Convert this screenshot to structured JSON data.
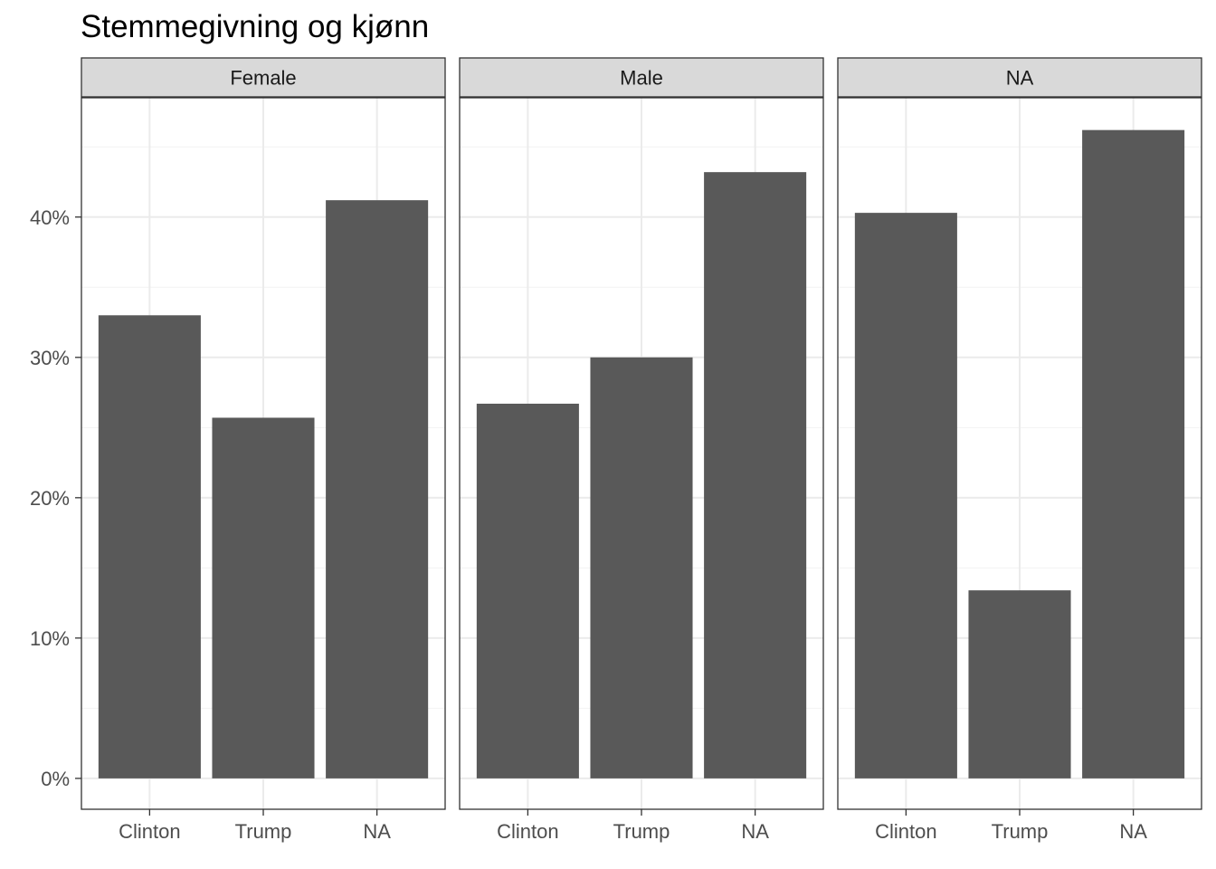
{
  "chart_data": {
    "type": "bar",
    "title": "Stemmegivning og kjønn",
    "xlabel": "",
    "ylabel": "",
    "categories": [
      "Clinton",
      "Trump",
      "NA"
    ],
    "ylim": [
      -2.2,
      48.5
    ],
    "yticks": [
      0,
      10,
      20,
      30,
      40
    ],
    "ytick_labels": [
      "0%",
      "10%",
      "20%",
      "30%",
      "40%"
    ],
    "grid": true,
    "theme": "bw",
    "bar_color": "#595959",
    "panels": [
      {
        "label": "Female",
        "values": [
          33.0,
          25.7,
          41.2
        ]
      },
      {
        "label": "Male",
        "values": [
          26.7,
          30.0,
          43.2
        ]
      },
      {
        "label": "NA",
        "values": [
          40.3,
          13.4,
          46.2
        ]
      }
    ]
  }
}
